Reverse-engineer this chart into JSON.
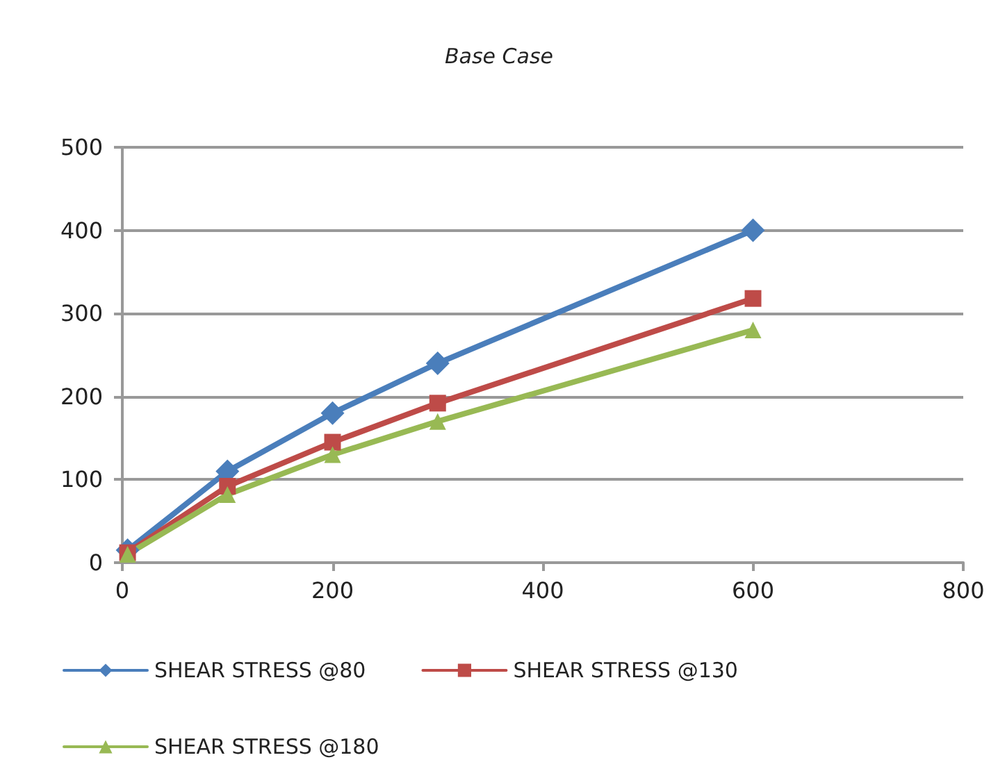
{
  "chart_data": {
    "type": "line",
    "title": "Base Case",
    "x": [
      5,
      100,
      200,
      300,
      600
    ],
    "series": [
      {
        "name": "SHEAR STRESS @80",
        "color": "#4a7ebb",
        "marker": "diamond",
        "values": [
          15,
          110,
          180,
          240,
          400
        ]
      },
      {
        "name": "SHEAR STRESS @130",
        "color": "#be4b48",
        "marker": "square",
        "values": [
          12,
          92,
          145,
          192,
          318
        ]
      },
      {
        "name": "SHEAR STRESS @180",
        "color": "#98b954",
        "marker": "triangle",
        "values": [
          10,
          82,
          130,
          170,
          280
        ]
      }
    ],
    "xlim": [
      0,
      800
    ],
    "xticks": [
      0,
      200,
      400,
      600,
      800
    ],
    "ylim": [
      0,
      500
    ],
    "yticks": [
      0,
      100,
      200,
      300,
      400,
      500
    ],
    "grid": "y",
    "legend": "bottom",
    "line_style": "solid"
  }
}
